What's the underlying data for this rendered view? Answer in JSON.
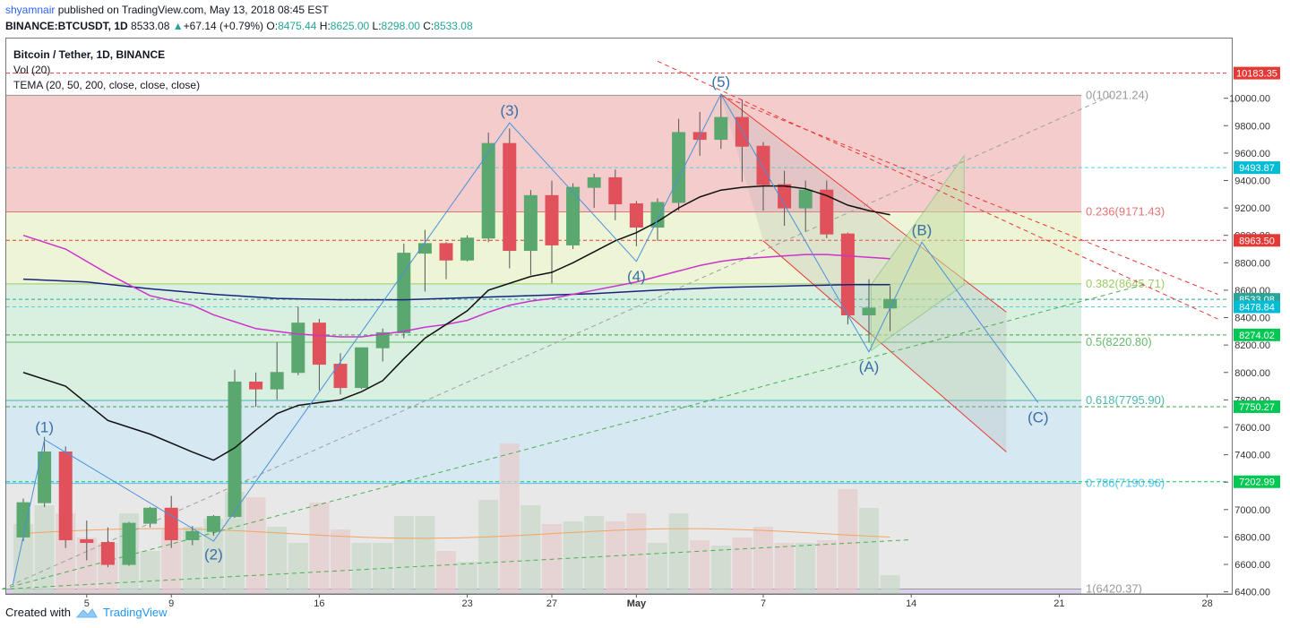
{
  "header": {
    "author": "shyamnair",
    "published_text": "published on TradingView.com, May 13, 2018 08:45 EST",
    "symbol": "BINANCE:BTCUSDT, 1D",
    "last": "8533.08",
    "change_arrow": "▲",
    "change": "+67.14 (+0.79%)",
    "o_label": "O:",
    "o": "8475.44",
    "h_label": "H:",
    "h": "8625.00",
    "l_label": "L:",
    "l": "8298.00",
    "c_label": "C:",
    "c": "8533.08"
  },
  "legend": {
    "title": "Bitcoin / Tether, 1D, BINANCE",
    "vol": "Vol (20)",
    "tema": "TEMA (20, 50, 200, close, close, close)"
  },
  "footer": {
    "created_with": "Created with",
    "brand": "TradingView"
  },
  "colors": {
    "up": "#26a69a",
    "down": "#ef5350",
    "fib_red": "#f4cccc",
    "fib_yellow": "#eef5d6",
    "fib_green": "#d9f0e0",
    "fib_blue": "#d6e8f2",
    "fib_gray": "#e8e8e8",
    "wave_line": "#4a90d9",
    "tema_fast": "#111111",
    "tema_mid": "#cc33cc",
    "tema_slow": "#1a237e"
  },
  "chart_data": {
    "type": "candlestick",
    "y_range": [
      6350,
      10280
    ],
    "x_ticks": [
      {
        "i": 3,
        "label": "5"
      },
      {
        "i": 7,
        "label": "9"
      },
      {
        "i": 14,
        "label": "16"
      },
      {
        "i": 21,
        "label": "23"
      },
      {
        "i": 25,
        "label": "27"
      },
      {
        "i": 29,
        "label": "May"
      },
      {
        "i": 35,
        "label": "7"
      },
      {
        "i": 42,
        "label": "14"
      },
      {
        "i": 49,
        "label": "21"
      },
      {
        "i": 56,
        "label": "28"
      }
    ],
    "y_ticks": [
      6400,
      6600,
      6800,
      7000,
      7200,
      7400,
      7600,
      7800,
      8000,
      8200,
      8400,
      8600,
      8800,
      9000,
      9200,
      9400,
      9600,
      9800,
      10000
    ],
    "y_tick_labels": [
      "6400.00",
      "6600.00",
      "6800.00",
      "7000.00",
      "7200.00",
      "7400.00",
      "7600.00",
      "7800.00",
      "8000.00",
      "8200.00",
      "8400.00",
      "8600.00",
      "8800.00",
      "9000.00",
      "9200.00",
      "9400.00",
      "9600.00",
      "9800.00",
      "10000.00"
    ],
    "candles": [
      {
        "o": 6800,
        "h": 7080,
        "l": 6770,
        "c": 7050
      },
      {
        "o": 7050,
        "h": 7530,
        "l": 7020,
        "c": 7420
      },
      {
        "o": 7420,
        "h": 7460,
        "l": 6720,
        "c": 6780
      },
      {
        "o": 6780,
        "h": 6920,
        "l": 6630,
        "c": 6760
      },
      {
        "o": 6760,
        "h": 6870,
        "l": 6580,
        "c": 6600
      },
      {
        "o": 6600,
        "h": 6910,
        "l": 6590,
        "c": 6900
      },
      {
        "o": 6900,
        "h": 7020,
        "l": 6870,
        "c": 7010
      },
      {
        "o": 7010,
        "h": 7100,
        "l": 6720,
        "c": 6780
      },
      {
        "o": 6780,
        "h": 6880,
        "l": 6740,
        "c": 6840
      },
      {
        "o": 6840,
        "h": 6960,
        "l": 6810,
        "c": 6950
      },
      {
        "o": 6950,
        "h": 8020,
        "l": 6940,
        "c": 7930
      },
      {
        "o": 7930,
        "h": 8000,
        "l": 7750,
        "c": 7880
      },
      {
        "o": 7880,
        "h": 8220,
        "l": 7800,
        "c": 8000
      },
      {
        "o": 8000,
        "h": 8480,
        "l": 7980,
        "c": 8360
      },
      {
        "o": 8360,
        "h": 8390,
        "l": 7870,
        "c": 8060
      },
      {
        "o": 8060,
        "h": 8140,
        "l": 7840,
        "c": 7890
      },
      {
        "o": 7890,
        "h": 8180,
        "l": 7880,
        "c": 8180
      },
      {
        "o": 8180,
        "h": 8320,
        "l": 8080,
        "c": 8290
      },
      {
        "o": 8290,
        "h": 8940,
        "l": 8250,
        "c": 8870
      },
      {
        "o": 8870,
        "h": 9040,
        "l": 8590,
        "c": 8940
      },
      {
        "o": 8940,
        "h": 8950,
        "l": 8680,
        "c": 8820
      },
      {
        "o": 8820,
        "h": 9000,
        "l": 8810,
        "c": 8980
      },
      {
        "o": 8980,
        "h": 9750,
        "l": 8950,
        "c": 9670
      },
      {
        "o": 9670,
        "h": 9780,
        "l": 8760,
        "c": 8890
      },
      {
        "o": 8890,
        "h": 9330,
        "l": 8710,
        "c": 9290
      },
      {
        "o": 9290,
        "h": 9400,
        "l": 8650,
        "c": 8930
      },
      {
        "o": 8930,
        "h": 9380,
        "l": 8900,
        "c": 9350
      },
      {
        "o": 9350,
        "h": 9450,
        "l": 9200,
        "c": 9420
      },
      {
        "o": 9420,
        "h": 9480,
        "l": 9110,
        "c": 9230
      },
      {
        "o": 9230,
        "h": 9250,
        "l": 8920,
        "c": 9060
      },
      {
        "o": 9060,
        "h": 9270,
        "l": 8960,
        "c": 9240
      },
      {
        "o": 9240,
        "h": 9850,
        "l": 9180,
        "c": 9750
      },
      {
        "o": 9750,
        "h": 9900,
        "l": 9580,
        "c": 9700
      },
      {
        "o": 9700,
        "h": 10020,
        "l": 9630,
        "c": 9860
      },
      {
        "o": 9860,
        "h": 9990,
        "l": 9390,
        "c": 9650
      },
      {
        "o": 9650,
        "h": 9680,
        "l": 9180,
        "c": 9370
      },
      {
        "o": 9370,
        "h": 9470,
        "l": 9070,
        "c": 9200
      },
      {
        "o": 9200,
        "h": 9400,
        "l": 9030,
        "c": 9330
      },
      {
        "o": 9330,
        "h": 9400,
        "l": 8980,
        "c": 9010
      },
      {
        "o": 9010,
        "h": 9020,
        "l": 8350,
        "c": 8420
      },
      {
        "o": 8420,
        "h": 8680,
        "l": 8220,
        "c": 8470
      },
      {
        "o": 8470,
        "h": 8630,
        "l": 8300,
        "c": 8533
      }
    ],
    "volumes": [
      0.26,
      0.33,
      0.3,
      0.21,
      0.19,
      0.3,
      0.16,
      0.24,
      0.25,
      0.28,
      0.38,
      0.36,
      0.25,
      0.19,
      0.34,
      0.24,
      0.19,
      0.19,
      0.29,
      0.29,
      0.16,
      0.12,
      0.35,
      0.56,
      0.33,
      0.26,
      0.27,
      0.29,
      0.27,
      0.3,
      0.19,
      0.3,
      0.2,
      0.18,
      0.21,
      0.25,
      0.19,
      0.19,
      0.2,
      0.39,
      0.32,
      0.07
    ],
    "tema_fast": [
      [
        0,
        8000
      ],
      [
        2,
        7900
      ],
      [
        4,
        7650
      ],
      [
        6,
        7550
      ],
      [
        8,
        7420
      ],
      [
        9,
        7360
      ],
      [
        10,
        7450
      ],
      [
        11,
        7580
      ],
      [
        12,
        7700
      ],
      [
        13,
        7760
      ],
      [
        14,
        7780
      ],
      [
        15,
        7800
      ],
      [
        16,
        7860
      ],
      [
        17,
        7940
      ],
      [
        18,
        8100
      ],
      [
        19,
        8250
      ],
      [
        20,
        8350
      ],
      [
        21,
        8450
      ],
      [
        22,
        8600
      ],
      [
        23,
        8650
      ],
      [
        24,
        8700
      ],
      [
        25,
        8730
      ],
      [
        26,
        8800
      ],
      [
        27,
        8880
      ],
      [
        28,
        8960
      ],
      [
        29,
        9020
      ],
      [
        30,
        9100
      ],
      [
        31,
        9200
      ],
      [
        32,
        9280
      ],
      [
        33,
        9330
      ],
      [
        34,
        9350
      ],
      [
        35,
        9360
      ],
      [
        36,
        9360
      ],
      [
        37,
        9340
      ],
      [
        38,
        9290
      ],
      [
        39,
        9220
      ],
      [
        40,
        9180
      ],
      [
        41,
        9150
      ]
    ],
    "tema_mid": [
      [
        0,
        9000
      ],
      [
        2,
        8900
      ],
      [
        4,
        8720
      ],
      [
        6,
        8560
      ],
      [
        8,
        8490
      ],
      [
        9,
        8420
      ],
      [
        10,
        8370
      ],
      [
        11,
        8320
      ],
      [
        12,
        8300
      ],
      [
        13,
        8280
      ],
      [
        14,
        8270
      ],
      [
        15,
        8260
      ],
      [
        16,
        8260
      ],
      [
        17,
        8280
      ],
      [
        18,
        8300
      ],
      [
        19,
        8330
      ],
      [
        20,
        8350
      ],
      [
        21,
        8380
      ],
      [
        22,
        8440
      ],
      [
        23,
        8490
      ],
      [
        24,
        8520
      ],
      [
        25,
        8540
      ],
      [
        26,
        8570
      ],
      [
        27,
        8600
      ],
      [
        28,
        8630
      ],
      [
        29,
        8660
      ],
      [
        30,
        8700
      ],
      [
        31,
        8740
      ],
      [
        32,
        8780
      ],
      [
        33,
        8810
      ],
      [
        34,
        8830
      ],
      [
        35,
        8840
      ],
      [
        36,
        8850
      ],
      [
        37,
        8860
      ],
      [
        38,
        8860
      ],
      [
        39,
        8850
      ],
      [
        40,
        8840
      ],
      [
        41,
        8830
      ]
    ],
    "tema_slow": [
      [
        0,
        8680
      ],
      [
        3,
        8660
      ],
      [
        6,
        8610
      ],
      [
        9,
        8570
      ],
      [
        12,
        8540
      ],
      [
        15,
        8530
      ],
      [
        18,
        8530
      ],
      [
        21,
        8545
      ],
      [
        24,
        8560
      ],
      [
        27,
        8575
      ],
      [
        30,
        8600
      ],
      [
        33,
        8620
      ],
      [
        36,
        8630
      ],
      [
        39,
        8640
      ],
      [
        41,
        8640
      ]
    ],
    "fib_levels": [
      {
        "ratio": "0",
        "price": 10021.24,
        "label": "0(10021.24)",
        "color": "#999999"
      },
      {
        "ratio": "0.236",
        "price": 9171.43,
        "label": "0.236(9171.43)",
        "color": "#e57373"
      },
      {
        "ratio": "0.382",
        "price": 8645.71,
        "label": "0.382(8645.71)",
        "color": "#9ccc65"
      },
      {
        "ratio": "0.5",
        "price": 8220.8,
        "label": "0.5(8220.80)",
        "color": "#66bb6a"
      },
      {
        "ratio": "0.618",
        "price": 7795.9,
        "label": "0.618(7795.90)",
        "color": "#4db6ac"
      },
      {
        "ratio": "0.786",
        "price": 7190.96,
        "label": "0.786(7190.96)",
        "color": "#4fc3f7"
      },
      {
        "ratio": "1",
        "price": 6420.37,
        "label": "1(6420.37)",
        "color": "#999999"
      }
    ],
    "price_tags": [
      {
        "price": 10183.35,
        "label": "10183.35",
        "bg": "#e53935",
        "line": "#e53935"
      },
      {
        "price": 9493.87,
        "label": "9493.87",
        "bg": "#00bcd4",
        "line": "#4dd0e1"
      },
      {
        "price": 8963.5,
        "label": "8963.50",
        "bg": "#e53935",
        "line": "#e53935"
      },
      {
        "price": 8533.08,
        "label": "8533.08",
        "bg": "#26a69a",
        "line": "#26a69a"
      },
      {
        "price": 8478.84,
        "label": "8478.84",
        "bg": "#00bcd4",
        "line": "#4dd0e1"
      },
      {
        "price": 8274.02,
        "label": "8274.02",
        "bg": "#00c853",
        "line": "#43a047"
      },
      {
        "price": 7750.27,
        "label": "7750.27",
        "bg": "#00c853",
        "line": "#43a047"
      },
      {
        "price": 7202.99,
        "label": "7202.99",
        "bg": "#00c853",
        "line": "#00c853"
      }
    ],
    "wave_labels": [
      {
        "label": "(1)",
        "i": 1,
        "price": 7510,
        "pos": "above"
      },
      {
        "label": "(2)",
        "i": 9,
        "price": 6780,
        "pos": "below"
      },
      {
        "label": "(3)",
        "i": 23,
        "price": 9820,
        "pos": "above"
      },
      {
        "label": "(4)",
        "i": 29,
        "price": 8810,
        "pos": "below"
      },
      {
        "label": "(5)",
        "i": 33,
        "price": 10030,
        "pos": "above"
      },
      {
        "label": "(A)",
        "i": 40,
        "price": 8150,
        "pos": "below"
      },
      {
        "label": "(B)",
        "i": 42.5,
        "price": 8950,
        "pos": "above"
      },
      {
        "label": "(C)",
        "i": 48,
        "price": 7780,
        "pos": "below"
      }
    ],
    "wave_path": [
      [
        -0.5,
        6450
      ],
      [
        1,
        7510
      ],
      [
        9,
        6770
      ],
      [
        23,
        9820
      ],
      [
        29,
        8810
      ],
      [
        33,
        10030
      ],
      [
        40,
        8150
      ],
      [
        42.5,
        8950
      ],
      [
        48,
        7780
      ]
    ]
  }
}
